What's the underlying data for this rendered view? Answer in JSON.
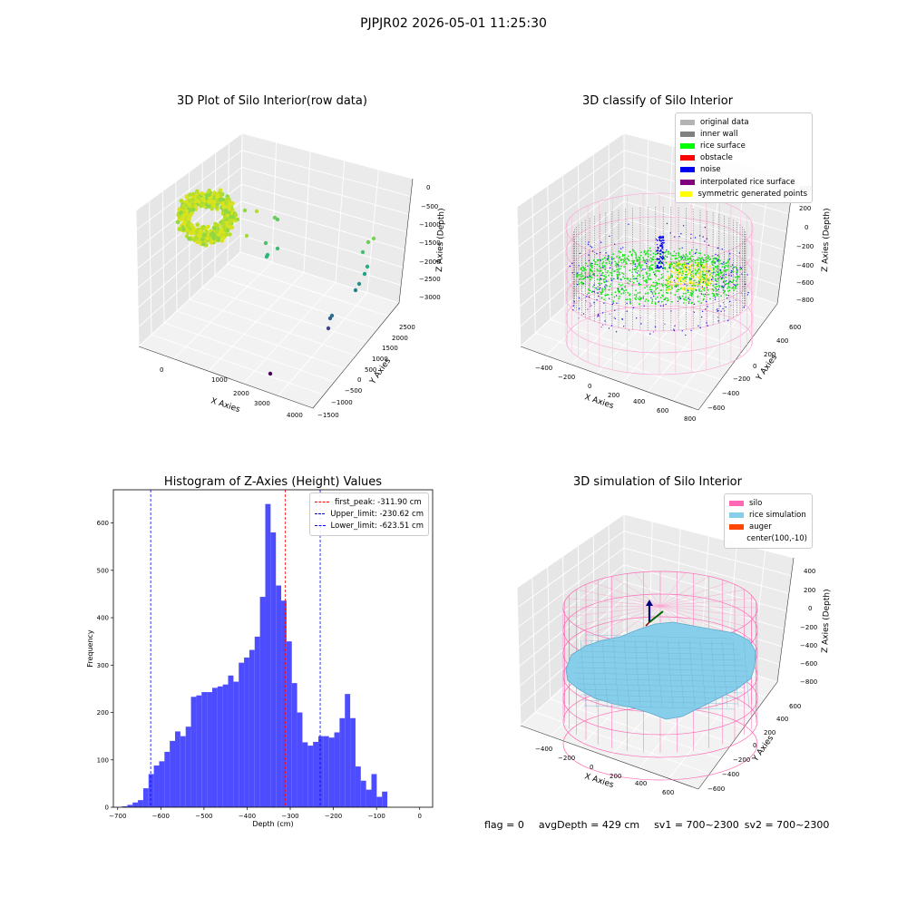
{
  "figure": {
    "suptitle": "PJPJR02 2026-05-01 11:25:30",
    "status": {
      "flag": "flag = 0",
      "avg_depth": "avgDepth = 429 cm",
      "sv1": "sv1 = 700~2300",
      "sv2": "sv2 = 700~2300"
    }
  },
  "panels": {
    "raw": {
      "title": "3D Plot of Silo Interior(row data)",
      "xlabel": "X Axies",
      "ylabel": "Y Axies",
      "zlabel": "Z Axies (Depth)",
      "xticks": [
        "0",
        "1000",
        "2000",
        "3000",
        "4000"
      ],
      "yticks": [
        "2500",
        "2000",
        "1500",
        "1000",
        "500",
        "0",
        "−500",
        "−1000",
        "−1500"
      ],
      "zticks": [
        "0",
        "−500",
        "−1000",
        "−1500",
        "−2000",
        "−2500",
        "−3000"
      ]
    },
    "classify": {
      "title": "3D classify of Silo Interior",
      "xlabel": "X Axies",
      "ylabel": "Y Axies",
      "zlabel": "Z Axies (Depth)",
      "xticks": [
        "−400",
        "−200",
        "0",
        "200",
        "400",
        "600",
        "800"
      ],
      "yticks": [
        "600",
        "400",
        "200",
        "0",
        "−200",
        "−400",
        "−600"
      ],
      "zticks": [
        "200",
        "0",
        "−200",
        "−400",
        "−600",
        "−800"
      ],
      "zticks_partial": "400",
      "legend": [
        {
          "label": "original data",
          "color": "#b3b3b3"
        },
        {
          "label": "inner wall",
          "color": "#808080"
        },
        {
          "label": "rice surface",
          "color": "#00ff00"
        },
        {
          "label": "obstacle",
          "color": "#ff0000"
        },
        {
          "label": "noise",
          "color": "#0000ee"
        },
        {
          "label": "interpolated rice surface",
          "color": "#800080"
        },
        {
          "label": "symmetric generated points",
          "color": "#ffff00"
        }
      ]
    },
    "histogram": {
      "title": "Histogram of Z-Axies (Height) Values",
      "xlabel": "Depth (cm)",
      "ylabel": "Frequency",
      "legend": [
        {
          "label": "first_peak: -311.90 cm",
          "color": "#ff0000"
        },
        {
          "label": "Upper_limit: -230.62 cm",
          "color": "#0000ff"
        },
        {
          "label": "Lower_limit: -623.51 cm",
          "color": "#0000ff"
        }
      ]
    },
    "simulation": {
      "title": "3D simulation of Silo Interior",
      "xlabel": "X Axies",
      "ylabel": "Y Axies",
      "zlabel": "Z Axies (Depth)",
      "xticks": [
        "−400",
        "−200",
        "0",
        "200",
        "400",
        "600"
      ],
      "yticks": [
        "600",
        "400",
        "200",
        "0",
        "−200",
        "−400",
        "−600"
      ],
      "zticks": [
        "400",
        "200",
        "0",
        "−200",
        "−400",
        "−600",
        "−800"
      ],
      "legend": [
        {
          "label": "silo",
          "color": "#ff69b4"
        },
        {
          "label": "rice simulation",
          "color": "#87ceeb"
        },
        {
          "label": "auger",
          "color": "#ff4500"
        },
        {
          "label": "center(100,-10)",
          "color": ""
        }
      ]
    }
  },
  "chart_data": [
    {
      "type": "scatter",
      "title": "3D Plot of Silo Interior(row data)",
      "xlabel": "X Axies",
      "ylabel": "Y Axies",
      "zlabel": "Z Axies (Depth)",
      "xlim": [
        -600,
        4200
      ],
      "ylim": [
        -1600,
        2700
      ],
      "zlim": [
        -3400,
        200
      ],
      "grid": true
    },
    {
      "type": "scatter",
      "title": "3D classify of Silo Interior",
      "xlabel": "X Axies",
      "ylabel": "Y Axies",
      "zlabel": "Z Axies (Depth)",
      "xlim": [
        -500,
        800
      ],
      "ylim": [
        -650,
        650
      ],
      "zlim": [
        -900,
        400
      ],
      "grid": true,
      "legend": "top-right"
    },
    {
      "type": "bar",
      "title": "Histogram of Z-Axies (Height) Values",
      "xlabel": "Depth (cm)",
      "ylabel": "Frequency",
      "xlim": [
        -710,
        30
      ],
      "ylim": [
        0,
        670
      ],
      "xticks": [
        -700,
        -600,
        -500,
        -400,
        -300,
        -200,
        -100,
        0
      ],
      "yticks": [
        0,
        100,
        200,
        300,
        400,
        500,
        600
      ],
      "bin_start": -690,
      "bin_width": 12.3,
      "values": [
        2,
        5,
        10,
        15,
        40,
        70,
        88,
        97,
        117,
        140,
        160,
        150,
        170,
        233,
        236,
        243,
        243,
        252,
        255,
        259,
        278,
        265,
        305,
        316,
        332,
        360,
        444,
        640,
        580,
        468,
        436,
        350,
        262,
        200,
        137,
        130,
        138,
        150,
        150,
        147,
        158,
        188,
        239,
        188,
        86,
        56,
        37,
        70,
        22,
        33
      ],
      "vlines": [
        {
          "name": "first_peak: -311.90 cm",
          "x": -311.9,
          "color": "#ff0000"
        },
        {
          "name": "Upper_limit: -230.62 cm",
          "x": -230.62,
          "color": "#0000ff"
        },
        {
          "name": "Lower_limit: -623.51 cm",
          "x": -623.51,
          "color": "#0000ff"
        }
      ],
      "legend": "top-right",
      "grid": false
    },
    {
      "type": "area",
      "title": "3D simulation of Silo Interior",
      "xlabel": "X Axies",
      "ylabel": "Y Axies",
      "zlabel": "Z Axies (Depth)",
      "xlim": [
        -500,
        700
      ],
      "ylim": [
        -650,
        650
      ],
      "zlim": [
        -900,
        450
      ],
      "grid": true,
      "legend": "top-right"
    }
  ]
}
